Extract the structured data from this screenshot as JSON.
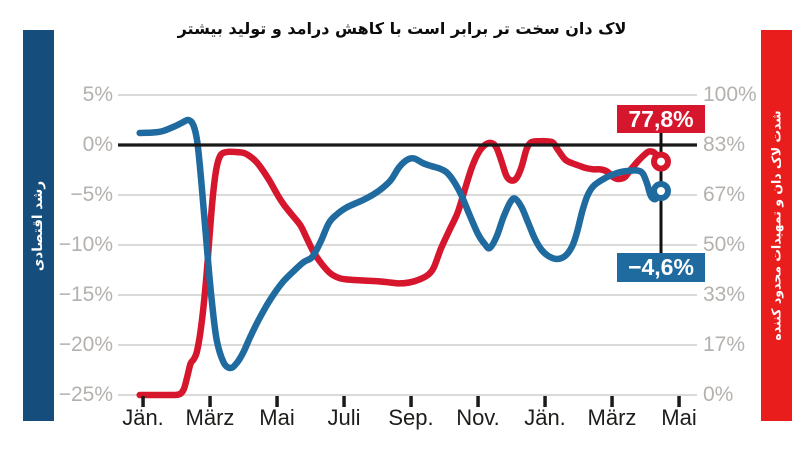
{
  "title": "لاک دان سخت تر برابر است با کاهش درامد و تولید بیشتر",
  "banners": {
    "left": {
      "label": "رشد اقتصادی",
      "color": "#154e7d"
    },
    "right": {
      "label": "شدت لاک دان و تمهیدات محدود کننده",
      "color": "#ea1d1d"
    }
  },
  "callouts": {
    "lockdown": "77,8%",
    "growth": "−4,6%"
  },
  "chart_data": {
    "type": "line",
    "x_unit": "months since Jän. 2020",
    "x_tick_labels": [
      "Jän.",
      "März",
      "Mai",
      "Juli",
      "Sep.",
      "Nov.",
      "Jän.",
      "März",
      "Mai"
    ],
    "x_tick_months": [
      0,
      2,
      4,
      6,
      8,
      10,
      12,
      14,
      16
    ],
    "left_axis": {
      "tick_labels": [
        "5%",
        "0%",
        "−5%",
        "−10%",
        "−15%",
        "−20%",
        "−25%"
      ],
      "tick_values": [
        5,
        0,
        -5,
        -10,
        -15,
        -20,
        -25
      ],
      "range": [
        -25,
        5
      ]
    },
    "right_axis": {
      "tick_labels": [
        "100%",
        "83%",
        "67%",
        "50%",
        "33%",
        "17%",
        "0%"
      ],
      "tick_values": [
        100,
        83.33,
        66.67,
        50,
        33.33,
        16.67,
        0
      ],
      "range": [
        0,
        100
      ]
    },
    "series": [
      {
        "name": "lockdown_stringency",
        "axis": "right",
        "color": "#d5162d",
        "end_value": 77.8,
        "end_label": "77,8%",
        "points": [
          [
            -0.1,
            0
          ],
          [
            0.5,
            0
          ],
          [
            0.9,
            0
          ],
          [
            1.1,
            0.3
          ],
          [
            1.22,
            2
          ],
          [
            1.32,
            6
          ],
          [
            1.42,
            10.5
          ],
          [
            1.52,
            12
          ],
          [
            1.62,
            15
          ],
          [
            1.75,
            24
          ],
          [
            1.88,
            38
          ],
          [
            2.0,
            55
          ],
          [
            2.1,
            68
          ],
          [
            2.2,
            76
          ],
          [
            2.32,
            80
          ],
          [
            2.5,
            81
          ],
          [
            2.75,
            81
          ],
          [
            3.0,
            80.7
          ],
          [
            3.2,
            79.5
          ],
          [
            3.4,
            77.5
          ],
          [
            3.6,
            74.5
          ],
          [
            3.8,
            71
          ],
          [
            4.0,
            67
          ],
          [
            4.2,
            63.5
          ],
          [
            4.45,
            60
          ],
          [
            4.7,
            56.5
          ],
          [
            4.9,
            52
          ],
          [
            5.1,
            47.5
          ],
          [
            5.35,
            43.5
          ],
          [
            5.6,
            40.5
          ],
          [
            5.85,
            39
          ],
          [
            6.1,
            38.5
          ],
          [
            6.5,
            38.2
          ],
          [
            6.9,
            38
          ],
          [
            7.3,
            37.6
          ],
          [
            7.65,
            37.2
          ],
          [
            7.95,
            37.5
          ],
          [
            8.25,
            38.5
          ],
          [
            8.5,
            40
          ],
          [
            8.68,
            42.5
          ],
          [
            8.9,
            49
          ],
          [
            9.15,
            55
          ],
          [
            9.4,
            61
          ],
          [
            9.62,
            69
          ],
          [
            9.82,
            76
          ],
          [
            10.0,
            80.5
          ],
          [
            10.2,
            83.3
          ],
          [
            10.4,
            84
          ],
          [
            10.55,
            82.5
          ],
          [
            10.7,
            78
          ],
          [
            10.85,
            73
          ],
          [
            11.0,
            71.5
          ],
          [
            11.15,
            72.3
          ],
          [
            11.3,
            76
          ],
          [
            11.45,
            82
          ],
          [
            11.6,
            84.3
          ],
          [
            11.85,
            84.6
          ],
          [
            12.1,
            84.5
          ],
          [
            12.25,
            84
          ],
          [
            12.4,
            81.5
          ],
          [
            12.6,
            78.5
          ],
          [
            12.8,
            77.3
          ],
          [
            13.0,
            76.5
          ],
          [
            13.2,
            75.7
          ],
          [
            13.45,
            75.2
          ],
          [
            13.65,
            75.2
          ],
          [
            13.85,
            74.5
          ],
          [
            14.05,
            72.5
          ],
          [
            14.2,
            72.0
          ],
          [
            14.38,
            72.6
          ],
          [
            14.55,
            75
          ],
          [
            14.78,
            78
          ],
          [
            15.0,
            80.4
          ],
          [
            15.12,
            81.2
          ],
          [
            15.28,
            80.6
          ],
          [
            15.43,
            77.8
          ]
        ]
      },
      {
        "name": "economic_growth",
        "axis": "left",
        "color": "#1f6a9f",
        "end_value": -4.6,
        "end_label": "−4,6%",
        "points": [
          [
            -0.1,
            1.2
          ],
          [
            0.3,
            1.25
          ],
          [
            0.6,
            1.4
          ],
          [
            0.9,
            1.8
          ],
          [
            1.15,
            2.2
          ],
          [
            1.35,
            2.5
          ],
          [
            1.5,
            2.0
          ],
          [
            1.62,
            0.3
          ],
          [
            1.75,
            -4
          ],
          [
            1.9,
            -10
          ],
          [
            2.05,
            -15.5
          ],
          [
            2.2,
            -19.5
          ],
          [
            2.4,
            -21.7
          ],
          [
            2.6,
            -22.3
          ],
          [
            2.8,
            -21.8
          ],
          [
            3.0,
            -20.7
          ],
          [
            3.2,
            -19.2
          ],
          [
            3.45,
            -17.5
          ],
          [
            3.7,
            -16
          ],
          [
            3.95,
            -14.7
          ],
          [
            4.2,
            -13.6
          ],
          [
            4.5,
            -12.6
          ],
          [
            4.8,
            -11.7
          ],
          [
            5.05,
            -11.2
          ],
          [
            5.3,
            -9.7
          ],
          [
            5.55,
            -7.8
          ],
          [
            5.8,
            -6.9
          ],
          [
            6.05,
            -6.3
          ],
          [
            6.3,
            -5.9
          ],
          [
            6.6,
            -5.45
          ],
          [
            6.9,
            -4.9
          ],
          [
            7.15,
            -4.3
          ],
          [
            7.4,
            -3.5
          ],
          [
            7.65,
            -2.2
          ],
          [
            7.9,
            -1.45
          ],
          [
            8.1,
            -1.35
          ],
          [
            8.35,
            -1.8
          ],
          [
            8.6,
            -2.1
          ],
          [
            8.85,
            -2.35
          ],
          [
            9.05,
            -2.7
          ],
          [
            9.25,
            -3.5
          ],
          [
            9.5,
            -5
          ],
          [
            9.75,
            -7
          ],
          [
            10.0,
            -8.9
          ],
          [
            10.2,
            -9.9
          ],
          [
            10.35,
            -10.3
          ],
          [
            10.55,
            -9.2
          ],
          [
            10.75,
            -7.3
          ],
          [
            10.95,
            -5.8
          ],
          [
            11.1,
            -5.35
          ],
          [
            11.3,
            -6.2
          ],
          [
            11.5,
            -7.8
          ],
          [
            11.7,
            -9.4
          ],
          [
            11.9,
            -10.5
          ],
          [
            12.1,
            -11.1
          ],
          [
            12.35,
            -11.4
          ],
          [
            12.6,
            -11.1
          ],
          [
            12.8,
            -10.2
          ],
          [
            12.95,
            -8.8
          ],
          [
            13.1,
            -6.8
          ],
          [
            13.25,
            -5.2
          ],
          [
            13.42,
            -4.2
          ],
          [
            13.6,
            -3.7
          ],
          [
            13.8,
            -3.3
          ],
          [
            14.0,
            -3.0
          ],
          [
            14.2,
            -2.75
          ],
          [
            14.45,
            -2.6
          ],
          [
            14.75,
            -2.55
          ],
          [
            14.92,
            -2.85
          ],
          [
            15.05,
            -3.9
          ],
          [
            15.16,
            -5.1
          ],
          [
            15.3,
            -5.4
          ],
          [
            15.43,
            -4.6
          ]
        ]
      }
    ]
  }
}
